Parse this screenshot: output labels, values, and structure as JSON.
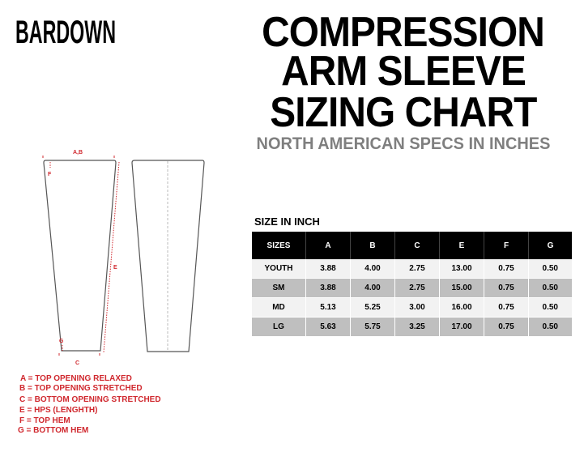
{
  "brand": {
    "logo_text": "BARDOWN"
  },
  "header": {
    "title_lines": [
      "COMPRESSION",
      "ARM SLEEVE",
      "SIZING CHART"
    ],
    "subtitle": "NORTH AMERICAN SPECS IN INCHES"
  },
  "diagram": {
    "labels": {
      "ab": "A,B",
      "f": "F",
      "e": "E",
      "g": "G",
      "c": "C"
    },
    "accent": "#d0282e"
  },
  "legend": [
    "A = TOP OPENING RELAXED",
    "B = TOP OPENING STRETCHED",
    "C = BOTTOM OPENING STRETCHED",
    "E = HPS (LENGHTH)",
    "F = TOP HEM",
    "G = BOTTOM HEM"
  ],
  "table": {
    "title": "SIZE IN INCH",
    "headers": [
      "SIZES",
      "A",
      "B",
      "C",
      "E",
      "F",
      "G"
    ],
    "rows": [
      [
        "YOUTH",
        "3.88",
        "4.00",
        "2.75",
        "13.00",
        "0.75",
        "0.50"
      ],
      [
        "SM",
        "3.88",
        "4.00",
        "2.75",
        "15.00",
        "0.75",
        "0.50"
      ],
      [
        "MD",
        "5.13",
        "5.25",
        "3.00",
        "16.00",
        "0.75",
        "0.50"
      ],
      [
        "LG",
        "5.63",
        "5.75",
        "3.25",
        "17.00",
        "0.75",
        "0.50"
      ]
    ]
  }
}
